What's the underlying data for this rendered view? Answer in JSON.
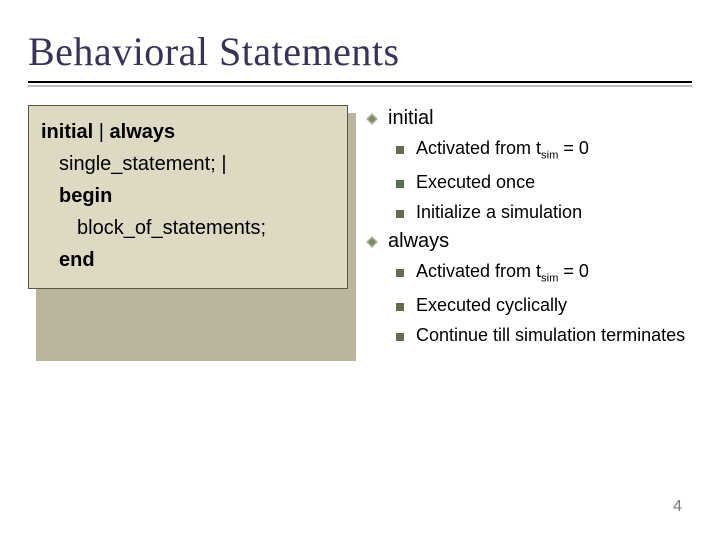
{
  "title": "Behavioral Statements",
  "slide_number": "4",
  "colors": {
    "title_text": "#3b3257",
    "codebox_bg": "#ddd9c3",
    "codebox_shadow": "#b9b59d",
    "codebox_border": "#5a5440",
    "sub_bullet": "#5f6e4e",
    "top_bullet_primary": "#7b8a63",
    "top_bullet_secondary": "#b6b6a8",
    "hr_top": "#000000",
    "hr_shadow": "#bfbfbf"
  },
  "code": {
    "line1_a": "initial",
    "line1_b": " | ",
    "line1_c": "always",
    "line2": "single_statement; |",
    "line3": "begin",
    "line4": "block_of_statements;",
    "line5": "end"
  },
  "sections": [
    {
      "heading": "initial",
      "items": [
        {
          "pre": "Activated from t",
          "sub": "sim",
          "post": " = 0"
        },
        {
          "pre": "Executed once",
          "sub": "",
          "post": ""
        },
        {
          "pre": "Initialize a simulation",
          "sub": "",
          "post": ""
        }
      ]
    },
    {
      "heading": "always",
      "items": [
        {
          "pre": "Activated from t",
          "sub": "sim",
          "post": " = 0"
        },
        {
          "pre": "Executed cyclically",
          "sub": "",
          "post": ""
        },
        {
          "pre": "Continue till simulation terminates",
          "sub": "",
          "post": ""
        }
      ]
    }
  ]
}
